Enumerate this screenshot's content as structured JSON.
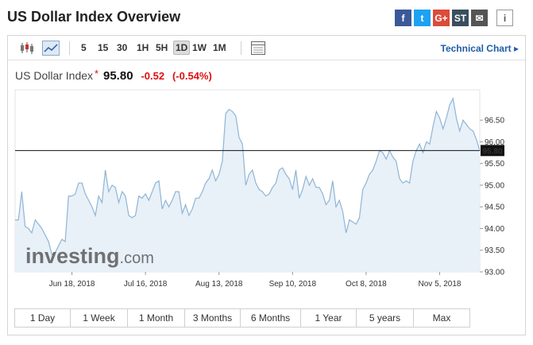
{
  "page": {
    "title": "US Dollar Index Overview"
  },
  "share": [
    {
      "name": "facebook-icon",
      "glyph": "f",
      "color": "#3b5998"
    },
    {
      "name": "twitter-icon",
      "glyph": "t",
      "color": "#1da1f2"
    },
    {
      "name": "google-plus-icon",
      "glyph": "G+",
      "color": "#dd4b39"
    },
    {
      "name": "stocktwits-icon",
      "glyph": "ST",
      "color": "#3a4e5f"
    },
    {
      "name": "email-icon",
      "glyph": "✉",
      "color": "#555555"
    },
    {
      "name": "info-icon",
      "glyph": "i",
      "color": "#666666"
    }
  ],
  "toolbar": {
    "intervals": [
      "5",
      "15",
      "30",
      "1H",
      "5H",
      "1D",
      "1W",
      "1M"
    ],
    "active_interval": "1D",
    "technical_chart_label": "Technical Chart ▸"
  },
  "quote": {
    "name": "US Dollar Index",
    "price": "95.80",
    "change": "-0.52",
    "change_pct": "(-0.54%)"
  },
  "ranges": [
    "1 Day",
    "1 Week",
    "1 Month",
    "3 Months",
    "6 Months",
    "1 Year",
    "5 years",
    "Max"
  ],
  "watermark": {
    "brand": "investing",
    "suffix": ".com"
  },
  "chart_data": {
    "type": "area",
    "x_tick_labels": [
      "Jun 18, 2018",
      "Jul 16, 2018",
      "Aug 13, 2018",
      "Sep 10, 2018",
      "Oct 8, 2018",
      "Nov 5, 2018"
    ],
    "y_ticks": [
      93.0,
      93.5,
      94.0,
      94.5,
      95.0,
      95.5,
      96.0,
      96.5
    ],
    "y_tick_labels": [
      "93.00",
      "93.50",
      "94.00",
      "94.50",
      "95.00",
      "95.50",
      "96.00",
      "96.50"
    ],
    "ylim": [
      93.0,
      97.2
    ],
    "current_value": 95.8,
    "current_label": "95.80",
    "line_color": "#8fb5d6",
    "fill_color": "#e8f0f8",
    "series": [
      {
        "values": [
          94.2,
          94.2,
          94.85,
          94.05,
          94.0,
          93.9,
          94.2,
          94.1,
          94.0,
          93.85,
          93.7,
          93.4,
          93.45,
          93.6,
          93.75,
          93.7,
          94.75,
          94.75,
          94.8,
          95.05,
          95.05,
          94.8,
          94.65,
          94.5,
          94.3,
          94.75,
          94.6,
          95.35,
          94.85,
          95.0,
          94.95,
          94.6,
          94.85,
          94.75,
          94.3,
          94.25,
          94.3,
          94.75,
          94.7,
          94.8,
          94.65,
          94.85,
          95.05,
          95.1,
          94.45,
          94.65,
          94.5,
          94.65,
          94.85,
          94.85,
          94.35,
          94.55,
          94.3,
          94.45,
          94.7,
          94.7,
          94.85,
          95.05,
          95.15,
          95.35,
          95.1,
          95.25,
          95.55,
          96.65,
          96.75,
          96.7,
          96.6,
          96.1,
          95.95,
          95.0,
          95.25,
          95.35,
          95.05,
          94.9,
          94.85,
          94.75,
          94.8,
          94.95,
          95.05,
          95.35,
          95.4,
          95.25,
          95.15,
          94.9,
          95.35,
          94.7,
          94.9,
          95.2,
          95.0,
          95.15,
          94.95,
          94.95,
          94.8,
          94.55,
          94.65,
          95.1,
          94.5,
          94.65,
          94.4,
          93.9,
          94.2,
          94.15,
          94.1,
          94.25,
          94.9,
          95.05,
          95.25,
          95.35,
          95.55,
          95.8,
          95.75,
          95.6,
          95.8,
          95.65,
          95.55,
          95.15,
          95.05,
          95.1,
          95.05,
          95.55,
          95.8,
          95.95,
          95.75,
          96.0,
          95.95,
          96.35,
          96.7,
          96.55,
          96.3,
          96.55,
          96.85,
          97.0,
          96.55,
          96.25,
          96.5,
          96.4,
          96.3,
          96.25,
          96.05,
          95.8
        ]
      }
    ]
  }
}
